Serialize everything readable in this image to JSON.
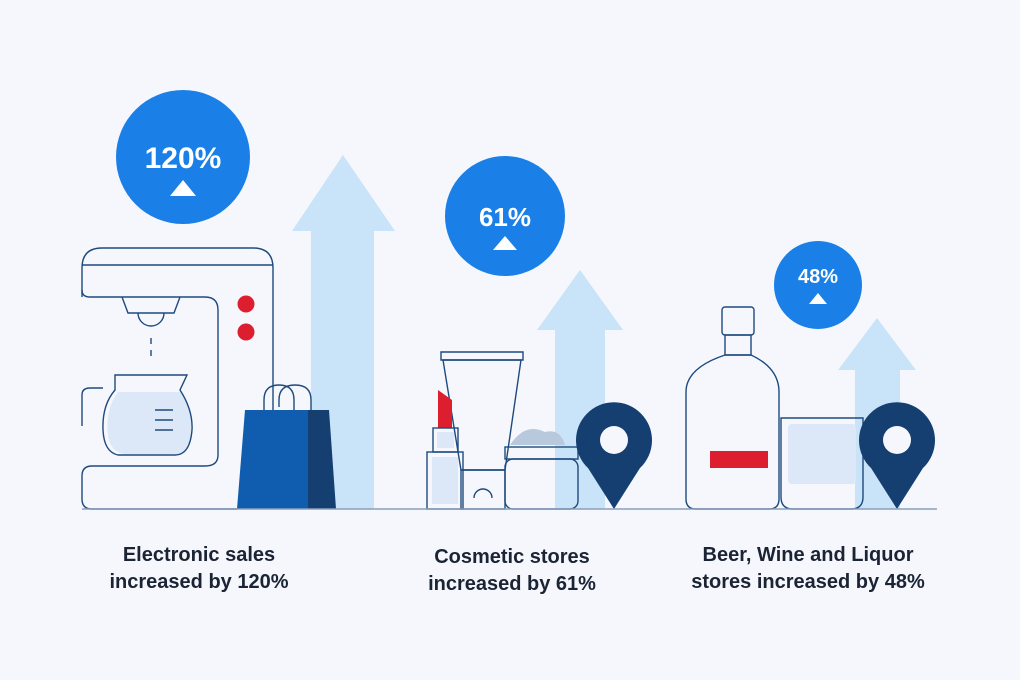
{
  "stats": [
    {
      "value": "120%",
      "caption_line1": "Electronic sales",
      "caption_line2": "increased by 120%",
      "icon": "coffee-maker-and-shopping-bag"
    },
    {
      "value": "61%",
      "caption_line1": "Cosmetic stores",
      "caption_line2": "increased by 61%",
      "icon": "cosmetics-and-location-pin"
    },
    {
      "value": "48%",
      "caption_line1": "Beer, Wine and Liquor",
      "caption_line2": "stores increased by 48%",
      "icon": "bottle-glass-and-location-pin"
    }
  ],
  "colors": {
    "background": "#f5f7fd",
    "badge": "#1a7fe6",
    "arrow": "#c9e3f8",
    "navy": "#143f70",
    "bag": "#105cae",
    "red": "#dc1e2e"
  }
}
